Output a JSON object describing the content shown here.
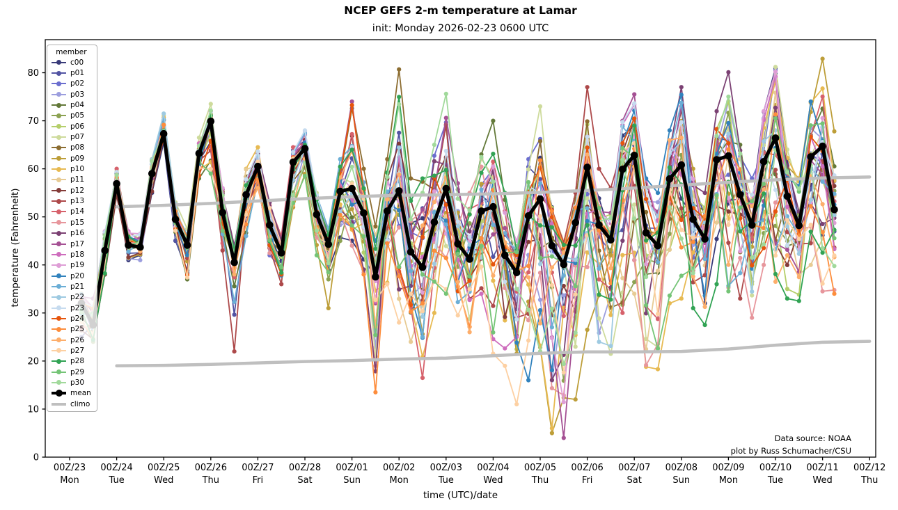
{
  "title": "NCEP GEFS 2-m temperature at Lamar",
  "subtitle": "init: Monday 2026-02-23 0600 UTC",
  "credit": [
    "Data source: NOAA",
    "plot by Russ Schumacher/CSU"
  ],
  "axes": {
    "xlabel": "time (UTC)/date",
    "ylabel": "temperature (Fahrenheit)",
    "yticks": [
      0,
      10,
      20,
      30,
      40,
      50,
      60,
      70,
      80
    ],
    "xticks": [
      {
        "utc": "00Z/23",
        "day": "Mon"
      },
      {
        "utc": "00Z/24",
        "day": "Tue"
      },
      {
        "utc": "00Z/25",
        "day": "Wed"
      },
      {
        "utc": "00Z/26",
        "day": "Thu"
      },
      {
        "utc": "00Z/27",
        "day": "Fri"
      },
      {
        "utc": "00Z/28",
        "day": "Sat"
      },
      {
        "utc": "00Z/01",
        "day": "Sun"
      },
      {
        "utc": "00Z/02",
        "day": "Mon"
      },
      {
        "utc": "00Z/03",
        "day": "Tue"
      },
      {
        "utc": "00Z/04",
        "day": "Wed"
      },
      {
        "utc": "00Z/05",
        "day": "Thu"
      },
      {
        "utc": "00Z/06",
        "day": "Fri"
      },
      {
        "utc": "00Z/07",
        "day": "Sat"
      },
      {
        "utc": "00Z/08",
        "day": "Sun"
      },
      {
        "utc": "00Z/09",
        "day": "Mon"
      },
      {
        "utc": "00Z/10",
        "day": "Tue"
      },
      {
        "utc": "00Z/11",
        "day": "Wed"
      },
      {
        "utc": "00Z/12",
        "day": "Thu"
      }
    ]
  },
  "legend": {
    "title": "member",
    "mean_color": "#000000",
    "climo_color": "#bfbfbf",
    "members": [
      {
        "label": "c00",
        "color": "#393b79"
      },
      {
        "label": "p01",
        "color": "#5254a3"
      },
      {
        "label": "p02",
        "color": "#6b6ecf"
      },
      {
        "label": "p03",
        "color": "#9c9ede"
      },
      {
        "label": "p04",
        "color": "#637939"
      },
      {
        "label": "p05",
        "color": "#8ca252"
      },
      {
        "label": "p06",
        "color": "#b5cf6b"
      },
      {
        "label": "p07",
        "color": "#cedb9c"
      },
      {
        "label": "p08",
        "color": "#8c6d31"
      },
      {
        "label": "p09",
        "color": "#bd9e39"
      },
      {
        "label": "p10",
        "color": "#e7ba52"
      },
      {
        "label": "p11",
        "color": "#e7cb94"
      },
      {
        "label": "p12",
        "color": "#843c39"
      },
      {
        "label": "p13",
        "color": "#ad494a"
      },
      {
        "label": "p14",
        "color": "#d6616b"
      },
      {
        "label": "p15",
        "color": "#e7969c"
      },
      {
        "label": "p16",
        "color": "#7b4173"
      },
      {
        "label": "p17",
        "color": "#a55194"
      },
      {
        "label": "p18",
        "color": "#ce6dbd"
      },
      {
        "label": "p19",
        "color": "#de9ed6"
      },
      {
        "label": "p20",
        "color": "#3182bd"
      },
      {
        "label": "p21",
        "color": "#6baed6"
      },
      {
        "label": "p22",
        "color": "#9ecae1"
      },
      {
        "label": "p23",
        "color": "#c6dbef"
      },
      {
        "label": "p24",
        "color": "#e6550d"
      },
      {
        "label": "p25",
        "color": "#fd8d3c"
      },
      {
        "label": "p26",
        "color": "#fdae6b"
      },
      {
        "label": "p27",
        "color": "#fdd0a2"
      },
      {
        "label": "p28",
        "color": "#31a354"
      },
      {
        "label": "p29",
        "color": "#74c476"
      },
      {
        "label": "p30",
        "color": "#a1d99b"
      },
      {
        "label": "mean",
        "color": "#000000"
      },
      {
        "label": "climo",
        "color": "#bfbfbf"
      }
    ]
  },
  "chart_data": {
    "type": "line",
    "title": "NCEP GEFS 2-m temperature at Lamar",
    "init": "Monday 2026-02-23 0600 UTC",
    "units": "Fahrenheit",
    "x_start": "2026-02-23 06:00 UTC",
    "x_step_hours": 6,
    "x_end": "2026-03-11 06:00 UTC",
    "xlabel": "time (UTC)/date",
    "ylabel": "temperature (Fahrenheit)",
    "ylim": [
      0,
      86.9
    ],
    "x_axis_days": [
      "00Z/23",
      "00Z/24",
      "00Z/25",
      "00Z/26",
      "00Z/27",
      "00Z/28",
      "00Z/01",
      "00Z/02",
      "00Z/03",
      "00Z/04",
      "00Z/05",
      "00Z/06",
      "00Z/07",
      "00Z/08",
      "00Z/09",
      "00Z/10",
      "00Z/11",
      "00Z/12"
    ],
    "legend_position": "upper left",
    "grid": false,
    "n_members": 31,
    "note": "31 ensemble member traces estimated via 6-hourly ensemble-mean and min/max envelope read from the plot",
    "mean": [
      32.0,
      27.5,
      43.0,
      56.9,
      44.1,
      43.7,
      59.0,
      67.3,
      49.5,
      44.1,
      63.2,
      69.9,
      50.9,
      40.5,
      54.6,
      60.5,
      48.3,
      42.5,
      61.4,
      64.2,
      50.5,
      44.3,
      55.3,
      55.9,
      50.8,
      37.5,
      51.2,
      55.4,
      42.7,
      39.5,
      48.9,
      55.9,
      44.4,
      41.2,
      51.2,
      52.1,
      42.0,
      38.4,
      50.2,
      53.7,
      44.0,
      40.1,
      48.8,
      60.3,
      48.3,
      45.2,
      59.9,
      62.8,
      46.7,
      44.0,
      57.9,
      60.8,
      49.5,
      45.4,
      61.9,
      62.7,
      54.6,
      48.3,
      61.5,
      66.4,
      54.3,
      48.2,
      62.5,
      64.7,
      51.5
    ],
    "env_min": [
      25,
      24,
      38,
      54.5,
      41,
      41,
      55,
      65.5,
      45,
      37,
      58,
      59,
      43,
      22,
      46,
      56,
      42,
      36,
      52,
      58.5,
      42,
      31,
      45,
      44,
      38,
      13.5,
      36,
      28,
      24,
      16.5,
      30,
      34,
      29.5,
      26,
      34,
      21.5,
      19,
      11,
      16,
      22,
      5,
      4,
      12,
      26.5,
      24,
      21.5,
      30,
      34,
      18.8,
      18.3,
      32,
      33,
      31,
      27.5,
      36,
      34.5,
      33,
      29,
      40,
      36.5,
      33,
      32.5,
      40,
      34.5,
      34
    ],
    "env_max": [
      34,
      33,
      47,
      60,
      47,
      46.5,
      62,
      71.5,
      53,
      47.5,
      66.5,
      73.5,
      56,
      44,
      60,
      64.5,
      53,
      46,
      64.5,
      68,
      55,
      47.5,
      62,
      74,
      60,
      48,
      62,
      80.7,
      58,
      58,
      65,
      75.6,
      57,
      55,
      63,
      70,
      55,
      45,
      62,
      73,
      52,
      45,
      55,
      77,
      60,
      56,
      70,
      75.5,
      58,
      55,
      68,
      77,
      60,
      55,
      72,
      80.1,
      65,
      58,
      72,
      81.2,
      64,
      58,
      74,
      82.9,
      67.8
    ],
    "climo_upper_daily": {
      "start_day_index": 1,
      "values": [
        52.1,
        52.4,
        52.8,
        53.3,
        53.8,
        54.2,
        54.5,
        54.6,
        54.8,
        55.1,
        55.5,
        56.0,
        56.6,
        57.2,
        57.7,
        58.1,
        58.3
      ]
    },
    "climo_lower_daily": {
      "start_day_index": 1,
      "values": [
        19.0,
        19.1,
        19.3,
        19.6,
        19.9,
        20.1,
        20.4,
        20.6,
        21.1,
        21.6,
        21.9,
        21.9,
        22.0,
        22.5,
        23.3,
        23.9,
        24.1
      ]
    }
  }
}
